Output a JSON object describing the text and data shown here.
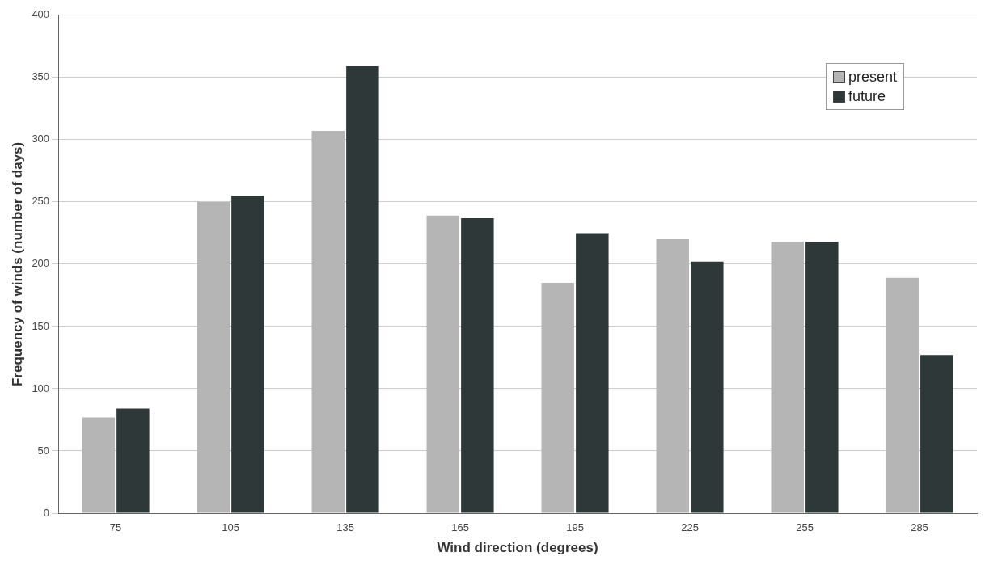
{
  "chart_data": {
    "type": "bar",
    "xlabel": "Wind direction (degrees)",
    "ylabel": "Frequency of winds (number of days)",
    "categories": [
      "75",
      "105",
      "135",
      "165",
      "195",
      "225",
      "255",
      "285"
    ],
    "series": [
      {
        "name": "present",
        "color": "#b5b5b5",
        "values": [
          77,
          250,
          307,
          239,
          185,
          220,
          218,
          189
        ]
      },
      {
        "name": "future",
        "color": "#2e3838",
        "values": [
          84,
          255,
          359,
          237,
          225,
          202,
          218,
          127
        ]
      }
    ],
    "ylim": [
      0,
      400
    ],
    "yticks": [
      0,
      50,
      100,
      150,
      200,
      250,
      300,
      350,
      400
    ],
    "grid": "y",
    "legend": "top right"
  }
}
